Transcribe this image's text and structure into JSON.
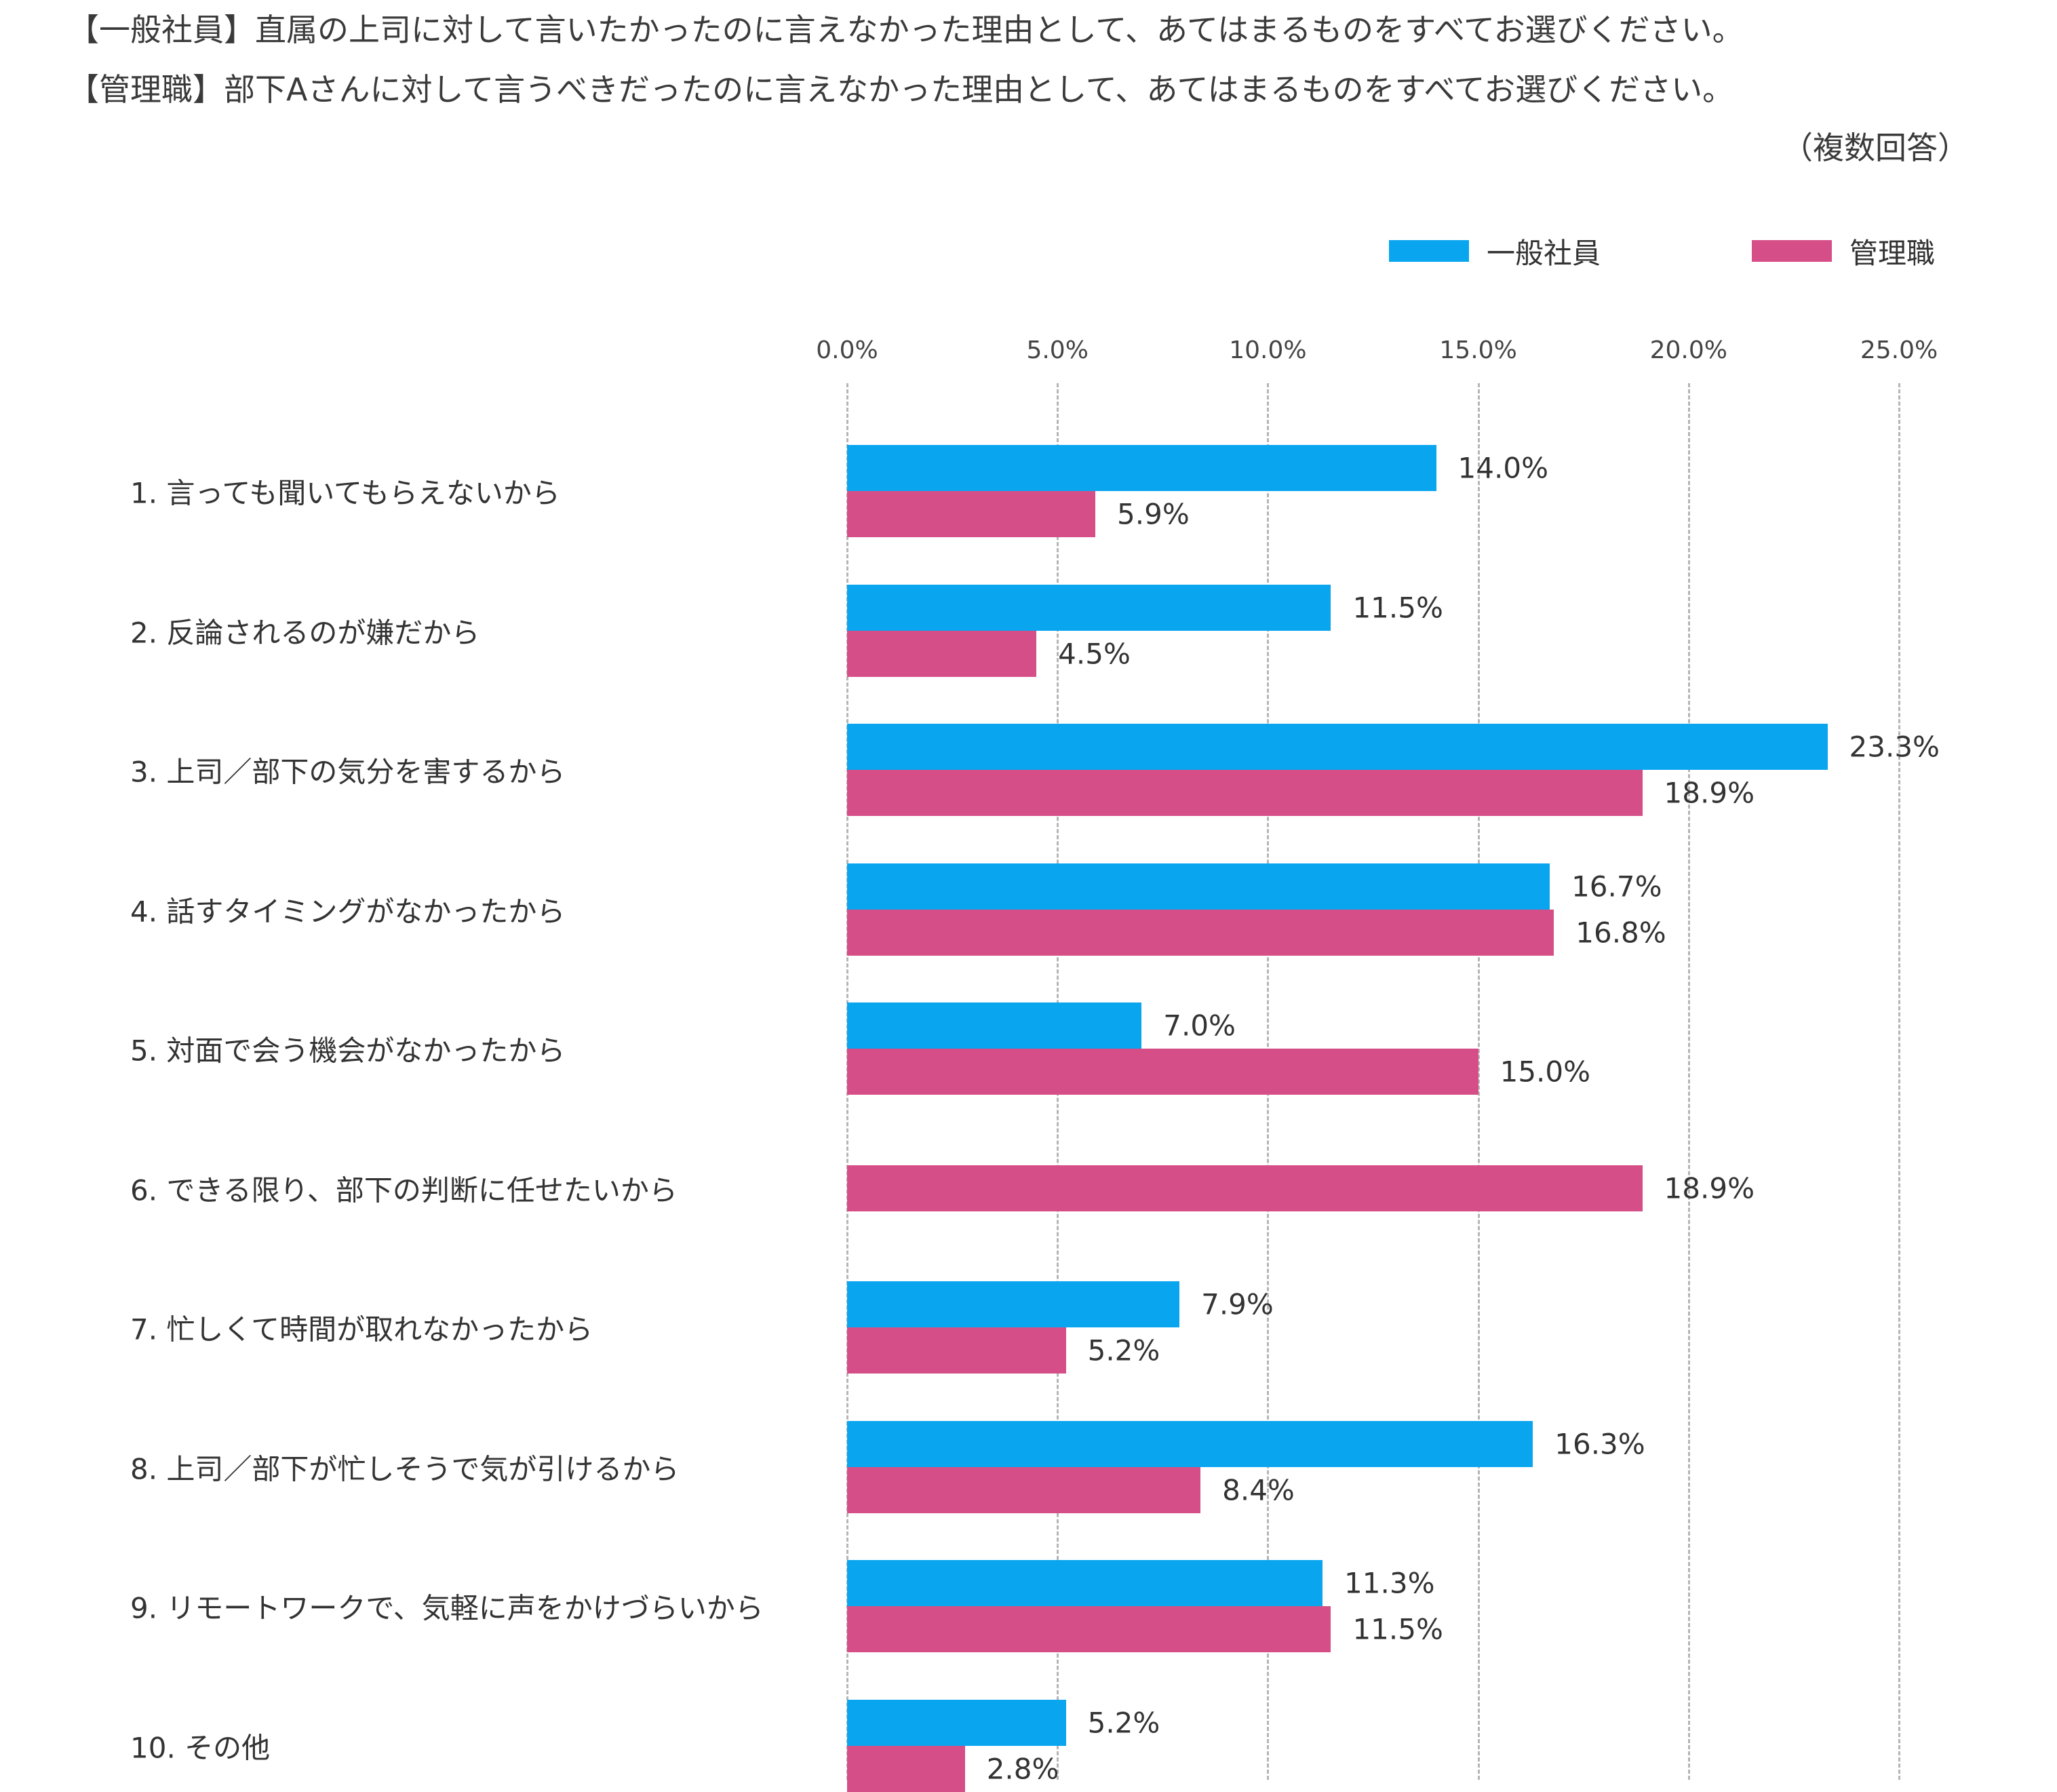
{
  "header": {
    "line1": "【一般社員】直属の上司に対して言いたかったのに言えなかった理由として、あてはまるものをすべてお選びください。",
    "line2": "【管理職】部下Aさんに対して言うべきだったのに言えなかった理由として、あてはまるものをすべてお選びください。",
    "note": "（複数回答）"
  },
  "chart_data": {
    "type": "bar",
    "orientation": "horizontal",
    "x_ticks": [
      "0.0%",
      "5.0%",
      "10.0%",
      "15.0%",
      "20.0%",
      "25.0%"
    ],
    "xlim": [
      0,
      25
    ],
    "grid": "vertical dashed",
    "legend_position": "top-right",
    "categories": [
      "1. 言っても聞いてもらえないから",
      "2. 反論されるのが嫌だから",
      "3. 上司／部下の気分を害するから",
      "4. 話すタイミングがなかったから",
      "5. 対面で会う機会がなかったから",
      "6. できる限り、部下の判断に任せたいから",
      "7. 忙しくて時間が取れなかったから",
      "8. 上司／部下が忙しそうで気が引けるから",
      "9. リモートワークで、気軽に声をかけづらいから",
      "10. その他"
    ],
    "series": [
      {
        "name": "一般社員",
        "color": "#0aa5ef",
        "values": [
          14.0,
          11.5,
          23.3,
          16.7,
          7.0,
          null,
          7.9,
          16.3,
          11.3,
          5.2
        ],
        "labels": [
          "14.0%",
          "11.5%",
          "23.3%",
          "16.7%",
          "7.0%",
          null,
          "7.9%",
          "16.3%",
          "11.3%",
          "5.2%"
        ]
      },
      {
        "name": "管理職",
        "color": "#d64e87",
        "values": [
          5.9,
          4.5,
          18.9,
          16.8,
          15.0,
          18.9,
          5.2,
          8.4,
          11.5,
          2.8
        ],
        "labels": [
          "5.9%",
          "4.5%",
          "18.9%",
          "16.8%",
          "15.0%",
          "18.9%",
          "5.2%",
          "8.4%",
          "11.5%",
          "2.8%"
        ]
      }
    ]
  }
}
